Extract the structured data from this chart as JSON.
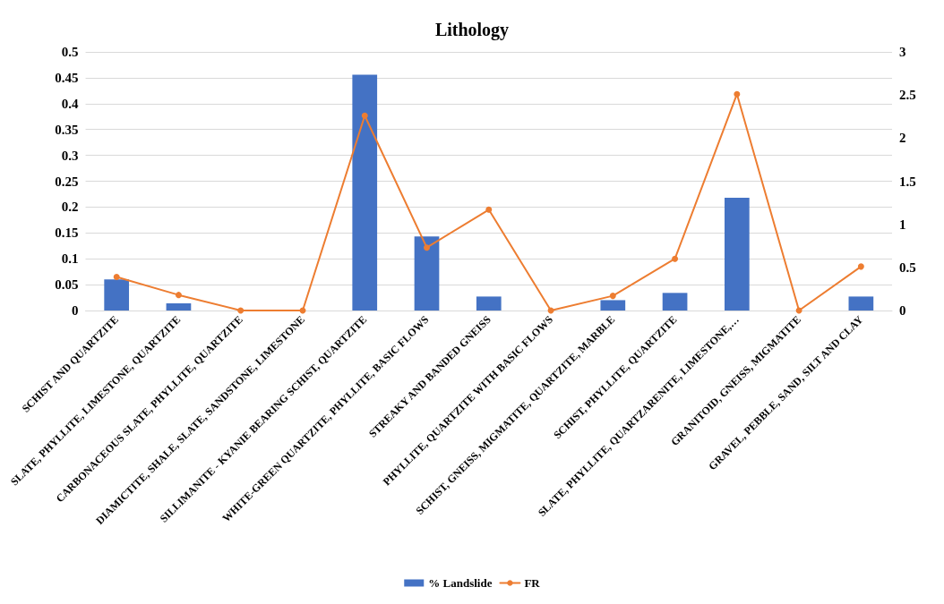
{
  "chart_data": {
    "type": "bar",
    "title": "Lithology",
    "categories": [
      "SCHIST AND QUARTZITE",
      "SLATE, PHYLLITE, LIMESTONE, QUARTZITE",
      "CARBONACEOUS SLATE, PHYLLITE, QUARTZITE",
      "DIAMICTITE, SHALE, SLATE, SANDSTONE, LIMESTONE",
      "SILLIMANITE - KYANIE BEARING SCHIST, QUARTZITE",
      "WHITE-GREEN QUARTZITE, PHYLLITE, BASIC FLOWS",
      "STREAKY AND BANDED GNEISS",
      "PHYLLITE, QUARTZITE WITH BASIC FLOWS",
      "SCHIST, GNEISS, MIGMATITE, QUARTZITE, MARBLE",
      "SCHIST, PHYLLITE, QUARTZITE",
      "SLATE, PHYLLITE, QUARTZARENITE, LIMESTONE,…",
      "GRANITOID, GNEISS, MIGMATITE",
      "GRAVEL, PEBBLE, SAND, SILT AND CLAY"
    ],
    "series": [
      {
        "name": "% Landslide",
        "color": "#4472c4",
        "values": [
          0.06,
          0.014,
          0,
          0,
          0.456,
          0.143,
          0.027,
          0,
          0.02,
          0.034,
          0.218,
          0,
          0.027
        ]
      },
      {
        "name": "FR",
        "type": "line",
        "axis": "y2",
        "color": "#ed7d31",
        "values": [
          0.39,
          0.18,
          0,
          0,
          2.26,
          0.73,
          1.17,
          0,
          0.17,
          0.6,
          2.51,
          0,
          0.51
        ]
      }
    ],
    "ylim": [
      0,
      0.5
    ],
    "yticks": [
      0,
      0.05,
      0.1,
      0.15,
      0.2,
      0.25,
      0.3,
      0.35,
      0.4,
      0.45,
      0.5
    ],
    "y2lim": [
      0,
      3
    ],
    "y2ticks": [
      0,
      0.5,
      1,
      1.5,
      2,
      2.5,
      3
    ],
    "grid": "y",
    "legend": "bottom",
    "marker": "circle",
    "line_style": "solid"
  }
}
